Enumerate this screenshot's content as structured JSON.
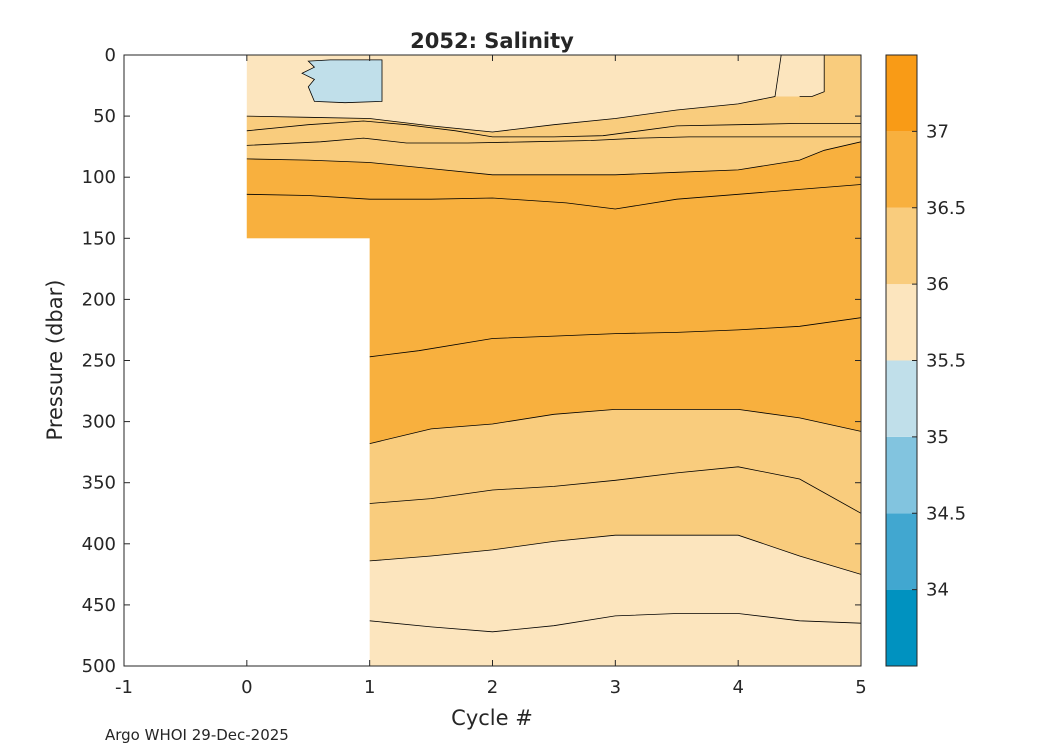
{
  "chart_data": {
    "type": "contour",
    "title": "2052:  Salinity",
    "xlabel": "Cycle #",
    "ylabel": "Pressure (dbar)",
    "xlim": [
      -1,
      5
    ],
    "ylim": [
      500,
      0
    ],
    "xticks": [
      -1,
      0,
      1,
      2,
      3,
      4,
      5
    ],
    "xtick_labels": [
      "-1",
      "0",
      "1",
      "2",
      "3",
      "4",
      "5"
    ],
    "yticks": [
      0,
      50,
      100,
      150,
      200,
      250,
      300,
      350,
      400,
      450,
      500
    ],
    "ytick_labels": [
      "0",
      "50",
      "100",
      "150",
      "200",
      "250",
      "300",
      "350",
      "400",
      "450",
      "500"
    ],
    "x": [
      0,
      1,
      2,
      3,
      4,
      5
    ],
    "data_extent": {
      "cycle_0_max_pressure": 150,
      "cycles_1_to_5_max_pressure": 500
    },
    "contour_levels": [
      34,
      34.5,
      35,
      35.5,
      36,
      36.5,
      37
    ],
    "colorbar": {
      "range": [
        33.5,
        37.5
      ],
      "tick_values": [
        34,
        34.5,
        35,
        35.5,
        36,
        36.5,
        37
      ],
      "tick_labels": [
        "34",
        "34.5",
        "35",
        "35.5",
        "36",
        "36.5",
        "37"
      ],
      "bands": [
        {
          "from": 33.5,
          "to": 34.0,
          "color": "#0092c0"
        },
        {
          "from": 34.0,
          "to": 34.5,
          "color": "#41a7d0"
        },
        {
          "from": 34.5,
          "to": 35.0,
          "color": "#82c4df"
        },
        {
          "from": 35.0,
          "to": 35.5,
          "color": "#c0dfea"
        },
        {
          "from": 35.5,
          "to": 36.0,
          "color": "#fce5be"
        },
        {
          "from": 36.0,
          "to": 36.5,
          "color": "#f9cc7d"
        },
        {
          "from": 36.5,
          "to": 37.0,
          "color": "#f8b03e"
        },
        {
          "from": 37.0,
          "to": 37.5,
          "color": "#f99b16"
        }
      ]
    },
    "isolines": [
      {
        "name": "surface-front",
        "points": [
          [
            0,
            50
          ],
          [
            0.5,
            51
          ],
          [
            1,
            52
          ],
          [
            1.5,
            58
          ],
          [
            2,
            63
          ],
          [
            2.5,
            57
          ],
          [
            3,
            52
          ],
          [
            3.5,
            45
          ],
          [
            4,
            40
          ],
          [
            4.3,
            34
          ],
          [
            4.35,
            0
          ]
        ]
      },
      {
        "name": "surface-front-east",
        "points": [
          [
            4.7,
            0
          ],
          [
            4.7,
            30
          ],
          [
            4.6,
            34
          ],
          [
            4.5,
            34
          ]
        ]
      },
      {
        "name": "upper-1",
        "points": [
          [
            0,
            62
          ],
          [
            0.5,
            57
          ],
          [
            0.95,
            54
          ],
          [
            1.3,
            57
          ],
          [
            1.7,
            62
          ],
          [
            2,
            67
          ],
          [
            2.5,
            67
          ],
          [
            2.9,
            66
          ],
          [
            3.2,
            62
          ],
          [
            3.5,
            58
          ],
          [
            4,
            57
          ],
          [
            4.5,
            56
          ],
          [
            5,
            56
          ]
        ]
      },
      {
        "name": "upper-2",
        "points": [
          [
            0,
            74
          ],
          [
            0.6,
            71
          ],
          [
            0.95,
            68
          ],
          [
            1.3,
            72
          ],
          [
            1.8,
            72
          ],
          [
            2.3,
            71
          ],
          [
            2.8,
            70
          ],
          [
            3.2,
            68
          ],
          [
            3.6,
            67
          ],
          [
            4,
            67
          ],
          [
            4.5,
            67
          ],
          [
            5,
            67
          ]
        ]
      },
      {
        "name": "upper-3",
        "points": [
          [
            0,
            85
          ],
          [
            0.5,
            86
          ],
          [
            1,
            88
          ],
          [
            1.5,
            93
          ],
          [
            2,
            98
          ],
          [
            2.5,
            98
          ],
          [
            3,
            98
          ],
          [
            3.5,
            96
          ],
          [
            4,
            94
          ],
          [
            4.5,
            86
          ],
          [
            4.7,
            78
          ],
          [
            5,
            71
          ]
        ]
      },
      {
        "name": "mid-1",
        "points": [
          [
            0,
            114
          ],
          [
            0.5,
            115
          ],
          [
            1,
            118
          ],
          [
            1.5,
            118
          ],
          [
            2,
            117
          ],
          [
            2.6,
            121
          ],
          [
            3,
            126
          ],
          [
            3.5,
            118
          ],
          [
            4,
            114
          ],
          [
            4.5,
            110
          ],
          [
            5,
            106
          ]
        ]
      },
      {
        "name": "deep-1",
        "points": [
          [
            1,
            247
          ],
          [
            1.4,
            242
          ],
          [
            2,
            232
          ],
          [
            2.5,
            230
          ],
          [
            3,
            228
          ],
          [
            3.5,
            227
          ],
          [
            4,
            225
          ],
          [
            4.5,
            222
          ],
          [
            5,
            215
          ]
        ]
      },
      {
        "name": "deep-2",
        "points": [
          [
            1,
            318
          ],
          [
            1.5,
            306
          ],
          [
            2,
            302
          ],
          [
            2.5,
            294
          ],
          [
            3,
            290
          ],
          [
            3.5,
            290
          ],
          [
            4,
            290
          ],
          [
            4.5,
            297
          ],
          [
            5,
            308
          ]
        ]
      },
      {
        "name": "deep-3",
        "points": [
          [
            1,
            367
          ],
          [
            1.5,
            363
          ],
          [
            2,
            356
          ],
          [
            2.5,
            353
          ],
          [
            3,
            348
          ],
          [
            3.5,
            342
          ],
          [
            4,
            337
          ],
          [
            4.5,
            347
          ],
          [
            5,
            375
          ]
        ]
      },
      {
        "name": "deep-4",
        "points": [
          [
            1,
            414
          ],
          [
            1.5,
            410
          ],
          [
            2,
            405
          ],
          [
            2.5,
            398
          ],
          [
            3,
            393
          ],
          [
            3.5,
            393
          ],
          [
            4,
            393
          ],
          [
            4.5,
            410
          ],
          [
            5,
            425
          ]
        ]
      },
      {
        "name": "deep-5",
        "points": [
          [
            1,
            463
          ],
          [
            1.5,
            468
          ],
          [
            2,
            472
          ],
          [
            2.5,
            467
          ],
          [
            3,
            459
          ],
          [
            3.5,
            457
          ],
          [
            4,
            457
          ],
          [
            4.5,
            463
          ],
          [
            5,
            465
          ]
        ]
      }
    ],
    "regions": [
      {
        "label": "35-35.5 pocket",
        "color": "#c0dfea",
        "points": [
          [
            0.5,
            5
          ],
          [
            0.68,
            4
          ],
          [
            1.1,
            4
          ],
          [
            1.1,
            38
          ],
          [
            0.8,
            39
          ],
          [
            0.55,
            38
          ],
          [
            0.5,
            26
          ],
          [
            0.55,
            20
          ],
          [
            0.45,
            15
          ],
          [
            0.55,
            10
          ],
          [
            0.5,
            5
          ]
        ]
      }
    ],
    "source_note": "Argo WHOI 29-Dec-2025"
  }
}
